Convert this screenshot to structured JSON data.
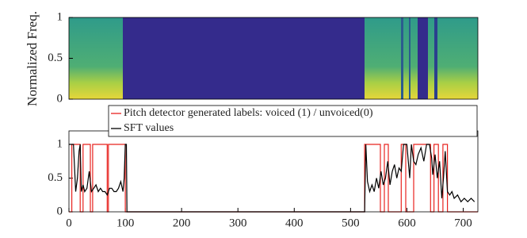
{
  "chart_data": [
    {
      "type": "heatmap",
      "ylabel": "Normalized Freq.",
      "ylim": [
        0,
        1
      ],
      "yticks": [
        0,
        0.5,
        1
      ]
    },
    {
      "type": "line",
      "xlim": [
        0,
        726
      ],
      "ylim": [
        0,
        1.2
      ],
      "xticks": [
        0,
        100,
        200,
        300,
        400,
        500,
        600,
        700
      ],
      "yticks": [
        0,
        0.5,
        1
      ],
      "legend": "top",
      "series": [
        {
          "name": "Pitch detector generated labels: voiced (1) / unvoiced(0)",
          "color": "#e8231f",
          "x": [
            0,
            5,
            5,
            20,
            20,
            25,
            25,
            38,
            38,
            42,
            42,
            68,
            68,
            70,
            70,
            100,
            100,
            525,
            525,
            553,
            553,
            560,
            560,
            567,
            567,
            590,
            590,
            598,
            598,
            612,
            612,
            642,
            642,
            648,
            648,
            656,
            656,
            664,
            664,
            672,
            672,
            726
          ],
          "values": [
            0,
            0,
            1,
            1,
            0,
            0,
            1,
            1,
            0,
            0,
            1,
            1,
            0,
            0,
            1,
            1,
            0,
            0,
            1,
            1,
            0,
            0,
            1,
            1,
            0,
            0,
            1,
            1,
            0,
            0,
            1,
            1,
            0,
            0,
            1,
            1,
            0,
            0,
            1,
            1,
            0,
            0
          ]
        },
        {
          "name": "SFT values",
          "color": "#000000",
          "x": [
            0,
            8,
            12,
            15,
            18,
            20,
            22,
            25,
            28,
            32,
            36,
            40,
            44,
            48,
            52,
            56,
            60,
            64,
            68,
            72,
            76,
            80,
            84,
            88,
            92,
            96,
            98,
            100,
            102,
            103,
            525,
            527,
            530,
            534,
            538,
            542,
            546,
            550,
            554,
            558,
            562,
            566,
            570,
            574,
            578,
            582,
            586,
            590,
            594,
            600,
            605,
            608,
            612,
            616,
            620,
            625,
            630,
            635,
            640,
            644,
            646,
            650,
            654,
            658,
            662,
            665,
            668,
            672,
            676,
            680,
            684,
            690,
            696,
            702,
            708,
            714,
            720
          ],
          "values": [
            1,
            1,
            0.3,
            0.5,
            0.9,
            1,
            0.3,
            0.4,
            0.3,
            0.35,
            0.6,
            0.3,
            0.35,
            0.4,
            0.3,
            0.35,
            0.3,
            0.3,
            0.25,
            0.35,
            0.35,
            0.3,
            0.3,
            0.35,
            0.45,
            0.3,
            0.5,
            1,
            1,
            0,
            0,
            1,
            0.45,
            0.3,
            0.4,
            0.3,
            0.5,
            0.35,
            0.6,
            0.4,
            0.5,
            0.75,
            0.4,
            0.6,
            0.7,
            0.5,
            0.65,
            0.6,
            1,
            1,
            0.5,
            1,
            0.75,
            0.7,
            0.85,
            0.95,
            0.75,
            1,
            1,
            0.8,
            0.55,
            0.85,
            0.5,
            0.75,
            0.2,
            0.5,
            0.9,
            0.3,
            0.25,
            0.3,
            0.2,
            0.25,
            0.15,
            0.2,
            0.15,
            0.2,
            0.15
          ]
        }
      ]
    }
  ]
}
